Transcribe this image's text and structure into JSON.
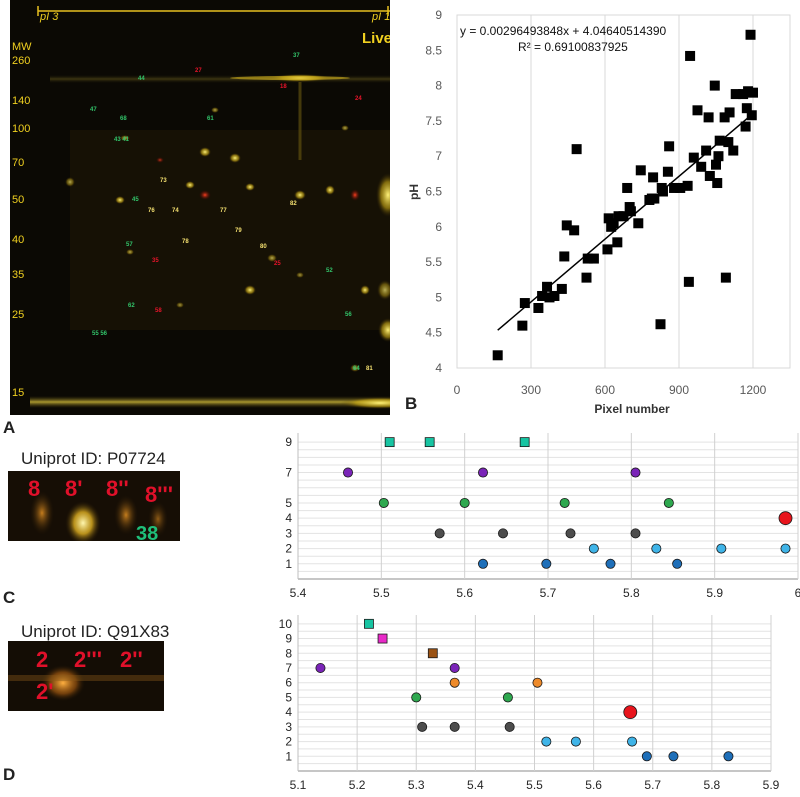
{
  "gel": {
    "pi_left": "pI 3",
    "pi_right": "pI 1",
    "title_fragment": "Live",
    "mw_title": "MW",
    "mw_labels": [
      "260",
      "140",
      "100",
      "70",
      "50",
      "40",
      "35",
      "25",
      "15"
    ],
    "spot_labels": [
      {
        "t": "37",
        "c": "green"
      },
      {
        "t": "44",
        "c": "green"
      },
      {
        "t": "27",
        "c": "red"
      },
      {
        "t": "47",
        "c": "green"
      },
      {
        "t": "68",
        "c": "green"
      },
      {
        "t": "43 41",
        "c": "green"
      },
      {
        "t": "18",
        "c": "red"
      },
      {
        "t": "24",
        "c": "red"
      },
      {
        "t": "61",
        "c": "green"
      },
      {
        "t": "73",
        "c": "yellow"
      },
      {
        "t": "74",
        "c": "yellow"
      },
      {
        "t": "76",
        "c": "yellow"
      },
      {
        "t": "79",
        "c": "yellow"
      },
      {
        "t": "77",
        "c": "yellow"
      },
      {
        "t": "78",
        "c": "yellow"
      },
      {
        "t": "80",
        "c": "yellow"
      },
      {
        "t": "82",
        "c": "yellow"
      },
      {
        "t": "45",
        "c": "green"
      },
      {
        "t": "57",
        "c": "green"
      },
      {
        "t": "62",
        "c": "green"
      },
      {
        "t": "52",
        "c": "green"
      },
      {
        "t": "55 56",
        "c": "green"
      },
      {
        "t": "35",
        "c": "red"
      },
      {
        "t": "25",
        "c": "red"
      },
      {
        "t": "64",
        "c": "green"
      },
      {
        "t": "81",
        "c": "yellow"
      },
      {
        "t": "58",
        "c": "red"
      },
      {
        "t": "56",
        "c": "green"
      }
    ]
  },
  "panel_letters": {
    "a": "A",
    "b": "B",
    "c": "C",
    "d": "D"
  },
  "chart_data": [
    {
      "type": "scatter",
      "equation": "y = 0.00296493848x + 4.04640514390",
      "r2": "R² = 0.69100837925",
      "xlabel": "Pixel number",
      "ylabel": "pH",
      "xlim": [
        0,
        1350
      ],
      "ylim": [
        4,
        9
      ],
      "xticks": [
        "0",
        "300",
        "600",
        "900",
        "1200"
      ],
      "yticks": [
        "4",
        "4.5",
        "5",
        "5.5",
        "6",
        "6.5",
        "7",
        "7.5",
        "8",
        "8.5",
        "9"
      ],
      "marker_color": "#000000",
      "trendline": {
        "slope": 0.00296493848,
        "intercept": 4.0464051439,
        "x_range": [
          165,
          1200
        ]
      },
      "points": [
        [
          165,
          4.18
        ],
        [
          265,
          4.6
        ],
        [
          275,
          4.92
        ],
        [
          330,
          4.85
        ],
        [
          345,
          5.02
        ],
        [
          365,
          5.15
        ],
        [
          375,
          5.0
        ],
        [
          395,
          5.02
        ],
        [
          425,
          5.12
        ],
        [
          435,
          5.58
        ],
        [
          445,
          6.02
        ],
        [
          475,
          5.95
        ],
        [
          485,
          7.1
        ],
        [
          525,
          5.28
        ],
        [
          530,
          5.55
        ],
        [
          555,
          5.55
        ],
        [
          610,
          5.68
        ],
        [
          615,
          6.12
        ],
        [
          625,
          6.0
        ],
        [
          635,
          6.05
        ],
        [
          650,
          5.78
        ],
        [
          655,
          6.15
        ],
        [
          675,
          6.15
        ],
        [
          690,
          6.55
        ],
        [
          700,
          6.28
        ],
        [
          705,
          6.22
        ],
        [
          735,
          6.05
        ],
        [
          745,
          6.8
        ],
        [
          780,
          6.38
        ],
        [
          790,
          6.4
        ],
        [
          795,
          6.7
        ],
        [
          800,
          6.4
        ],
        [
          825,
          4.62
        ],
        [
          830,
          6.55
        ],
        [
          835,
          6.5
        ],
        [
          855,
          6.78
        ],
        [
          860,
          7.14
        ],
        [
          880,
          6.55
        ],
        [
          905,
          6.55
        ],
        [
          935,
          6.58
        ],
        [
          940,
          5.22
        ],
        [
          945,
          8.42
        ],
        [
          960,
          6.98
        ],
        [
          975,
          7.65
        ],
        [
          990,
          6.85
        ],
        [
          1010,
          7.08
        ],
        [
          1020,
          7.55
        ],
        [
          1025,
          6.72
        ],
        [
          1045,
          8.0
        ],
        [
          1050,
          6.88
        ],
        [
          1055,
          6.62
        ],
        [
          1060,
          7.0
        ],
        [
          1065,
          7.22
        ],
        [
          1085,
          7.55
        ],
        [
          1090,
          5.28
        ],
        [
          1100,
          7.2
        ],
        [
          1105,
          7.62
        ],
        [
          1120,
          7.08
        ],
        [
          1130,
          7.88
        ],
        [
          1160,
          7.88
        ],
        [
          1170,
          7.42
        ],
        [
          1175,
          7.68
        ],
        [
          1180,
          7.92
        ],
        [
          1190,
          8.72
        ],
        [
          1195,
          7.58
        ],
        [
          1200,
          7.9
        ]
      ]
    },
    {
      "type": "scatter",
      "uniprot": "Uniprot ID: P07724",
      "spot_labels": [
        "8",
        "8'",
        "8''",
        "8'''",
        "38"
      ],
      "xlim": [
        5.4,
        6.0
      ],
      "xticks": [
        "5.4",
        "5.5",
        "5.6",
        "5.7",
        "5.8",
        "5.9",
        "6"
      ],
      "yrows": [
        1,
        2,
        3,
        4,
        5,
        7,
        9
      ],
      "ytick_labels": [
        "1",
        "2",
        "3",
        "4",
        "5",
        "7",
        "9"
      ],
      "series": [
        {
          "y": 1,
          "color": "#1e6fb9",
          "shape": "circle",
          "x": [
            5.622,
            5.698,
            5.775,
            5.855
          ]
        },
        {
          "y": 2,
          "color": "#3fb4e8",
          "shape": "circle",
          "x": [
            5.755,
            5.83,
            5.908,
            5.985
          ]
        },
        {
          "y": 3,
          "color": "#4d4d4d",
          "shape": "circle",
          "x": [
            5.57,
            5.646,
            5.727,
            5.805
          ]
        },
        {
          "y": 4,
          "color": "#e8141c",
          "shape": "circle-big",
          "x": [
            5.985
          ]
        },
        {
          "y": 5,
          "color": "#2ea84f",
          "shape": "circle",
          "x": [
            5.503,
            5.6,
            5.72,
            5.845
          ]
        },
        {
          "y": 7,
          "color": "#7a24b8",
          "shape": "circle",
          "x": [
            5.46,
            5.622,
            5.805
          ]
        },
        {
          "y": 9,
          "color": "#17c4a2",
          "shape": "square",
          "x": [
            5.51,
            5.558,
            5.672
          ]
        }
      ]
    },
    {
      "type": "scatter",
      "uniprot": "Uniprot ID: Q91X83",
      "spot_labels": [
        "2",
        "2'''",
        "2''",
        "2'"
      ],
      "xlim": [
        5.1,
        5.9
      ],
      "xticks": [
        "5.1",
        "5.2",
        "5.3",
        "5.4",
        "5.5",
        "5.6",
        "5.7",
        "5.8",
        "5.9"
      ],
      "yrows": [
        1,
        2,
        3,
        4,
        5,
        6,
        7,
        8,
        9,
        10
      ],
      "ytick_labels": [
        "1",
        "2",
        "3",
        "4",
        "5",
        "6",
        "7",
        "8",
        "9",
        "10"
      ],
      "series": [
        {
          "y": 1,
          "color": "#1e6fb9",
          "shape": "circle",
          "x": [
            5.69,
            5.735,
            5.828
          ]
        },
        {
          "y": 2,
          "color": "#3fb4e8",
          "shape": "circle",
          "x": [
            5.52,
            5.57,
            5.665
          ]
        },
        {
          "y": 3,
          "color": "#4d4d4d",
          "shape": "circle",
          "x": [
            5.31,
            5.365,
            5.458
          ]
        },
        {
          "y": 4,
          "color": "#e8141c",
          "shape": "circle-big",
          "x": [
            5.662
          ]
        },
        {
          "y": 5,
          "color": "#2ea84f",
          "shape": "circle",
          "x": [
            5.3,
            5.455
          ]
        },
        {
          "y": 6,
          "color": "#ee8a2a",
          "shape": "circle",
          "x": [
            5.365,
            5.505
          ]
        },
        {
          "y": 7,
          "color": "#7a24b8",
          "shape": "circle",
          "x": [
            5.138,
            5.365
          ]
        },
        {
          "y": 8,
          "color": "#9a5214",
          "shape": "square",
          "x": [
            5.328
          ]
        },
        {
          "y": 9,
          "color": "#e829c8",
          "shape": "square",
          "x": [
            5.243
          ]
        },
        {
          "y": 10,
          "color": "#17c4a2",
          "shape": "square",
          "x": [
            5.22
          ]
        }
      ]
    }
  ]
}
